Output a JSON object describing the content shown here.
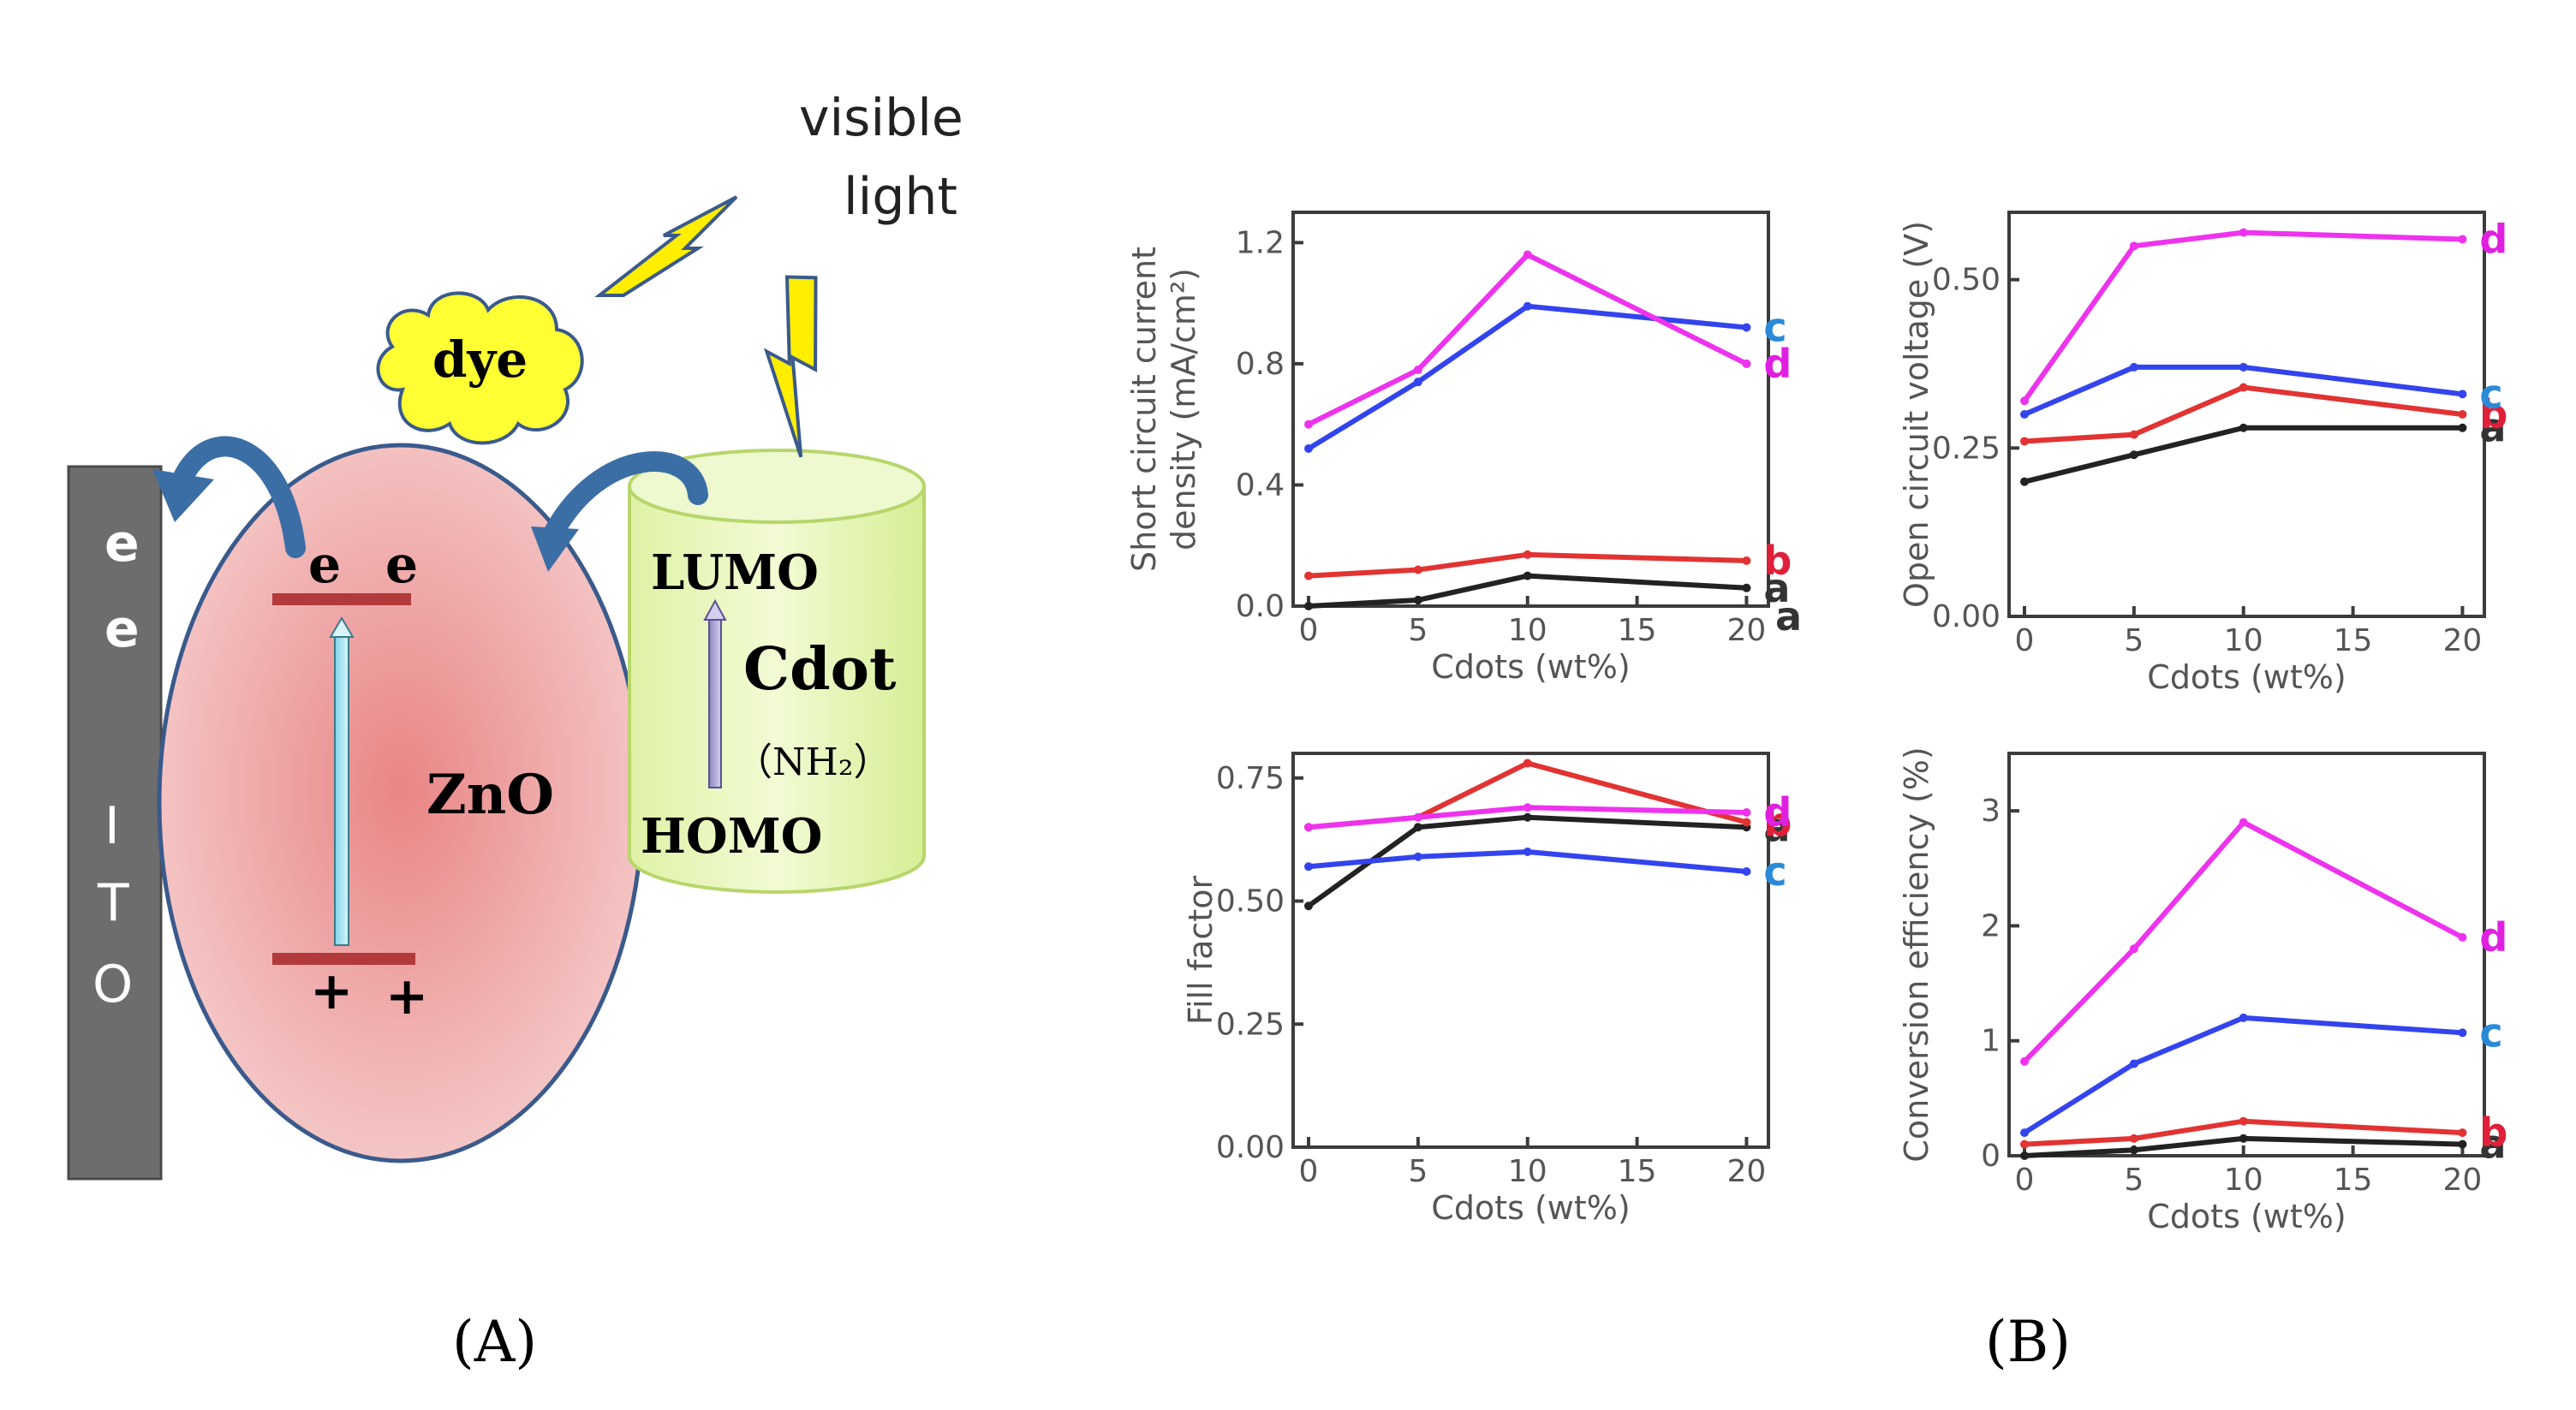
{
  "diagram": {
    "light_label_line1": "visible",
    "light_label_line2": "light",
    "dye_label": "dye",
    "ito_electrons": [
      "e",
      "e"
    ],
    "ito_letters": [
      "I",
      "T",
      "O"
    ],
    "zno_label": "ZnO",
    "zno_electrons": [
      "e",
      "e"
    ],
    "zno_holes": [
      "+",
      "+"
    ],
    "lumo_label": "LUMO",
    "cdot_label": "Cdot",
    "cdot_group": "（NH₂）",
    "homo_label": "HOMO",
    "panel_label": "(A)",
    "colors": {
      "ito": "#6d6d6d",
      "zno_fill": "#e89a9a",
      "zno_stroke": "#3a5a8c",
      "band_line": "#b23a3a",
      "cylinder_fill": "#e6f5b8",
      "cylinder_stroke": "#b7d66b",
      "bolt_fill": "#ffee00",
      "dye_fill": "#ffff33",
      "arrow": "#3b6ea5"
    }
  },
  "panel_b_label": "(B)",
  "series_colors": {
    "a": "#222222",
    "b": "#e23333",
    "c": "#3344ee",
    "d": "#ee33ee"
  },
  "series_label_colors": {
    "a": "#333333",
    "b": "#e0203a",
    "c": "#2a8ad8",
    "d": "#e020e0"
  },
  "chart_data": [
    {
      "type": "line",
      "xlabel": "Cdots (wt%)",
      "ylabel_lines": [
        "Short circuit current",
        "density (mA/cm²)"
      ],
      "x_ticks": [
        "0",
        "5",
        "10",
        "15",
        "20"
      ],
      "y_ticks": [
        "0.0",
        "0.4",
        "0.8",
        "1.2"
      ],
      "xlim": [
        0,
        21
      ],
      "ylim": [
        0,
        1.3
      ],
      "x": [
        0,
        5,
        10,
        20
      ],
      "series": [
        {
          "name": "a",
          "values": [
            0.0,
            0.02,
            0.1,
            0.06
          ]
        },
        {
          "name": "b",
          "values": [
            0.1,
            0.12,
            0.17,
            0.15
          ]
        },
        {
          "name": "c",
          "values": [
            0.52,
            0.74,
            0.99,
            0.92
          ]
        },
        {
          "name": "d",
          "values": [
            0.6,
            0.78,
            1.16,
            0.8
          ]
        }
      ],
      "extra_note": "a"
    },
    {
      "type": "line",
      "xlabel": "Cdots (wt%)",
      "ylabel_lines": [
        "Open circuit voltage (V)"
      ],
      "x_ticks": [
        "0",
        "5",
        "10",
        "15",
        "20"
      ],
      "y_ticks": [
        "0.00",
        "0.25",
        "0.50"
      ],
      "xlim": [
        0,
        21
      ],
      "ylim": [
        0,
        0.6
      ],
      "x": [
        0,
        5,
        10,
        20
      ],
      "series": [
        {
          "name": "a",
          "values": [
            0.2,
            0.24,
            0.28,
            0.28
          ]
        },
        {
          "name": "b",
          "values": [
            0.26,
            0.27,
            0.34,
            0.3
          ]
        },
        {
          "name": "c",
          "values": [
            0.3,
            0.37,
            0.37,
            0.33
          ]
        },
        {
          "name": "d",
          "values": [
            0.32,
            0.55,
            0.57,
            0.56
          ]
        }
      ]
    },
    {
      "type": "line",
      "xlabel": "Cdots (wt%)",
      "ylabel_lines": [
        "Fill factor"
      ],
      "x_ticks": [
        "0",
        "5",
        "10",
        "15",
        "20"
      ],
      "y_ticks": [
        "0.00",
        "0.25",
        "0.50",
        "0.75"
      ],
      "xlim": [
        0,
        21
      ],
      "ylim": [
        0,
        0.8
      ],
      "x": [
        0,
        5,
        10,
        20
      ],
      "series": [
        {
          "name": "a",
          "values": [
            0.49,
            0.65,
            0.67,
            0.65
          ]
        },
        {
          "name": "b",
          "values": [
            0.65,
            0.67,
            0.78,
            0.66
          ]
        },
        {
          "name": "c",
          "values": [
            0.57,
            0.59,
            0.6,
            0.56
          ]
        },
        {
          "name": "d",
          "values": [
            0.65,
            0.67,
            0.69,
            0.68
          ]
        }
      ]
    },
    {
      "type": "line",
      "xlabel": "Cdots (wt%)",
      "ylabel_lines": [
        "Conversion efficiency (%)"
      ],
      "x_ticks": [
        "0",
        "5",
        "10",
        "15",
        "20"
      ],
      "y_ticks": [
        "0",
        "1",
        "2",
        "3"
      ],
      "xlim": [
        0,
        21
      ],
      "ylim": [
        0,
        3.5
      ],
      "x": [
        0,
        5,
        10,
        20
      ],
      "series": [
        {
          "name": "a",
          "values": [
            0.0,
            0.05,
            0.15,
            0.1
          ]
        },
        {
          "name": "b",
          "values": [
            0.1,
            0.15,
            0.3,
            0.2
          ]
        },
        {
          "name": "c",
          "values": [
            0.2,
            0.8,
            1.2,
            1.07
          ]
        },
        {
          "name": "d",
          "values": [
            0.82,
            1.8,
            2.9,
            1.9
          ]
        }
      ]
    }
  ]
}
